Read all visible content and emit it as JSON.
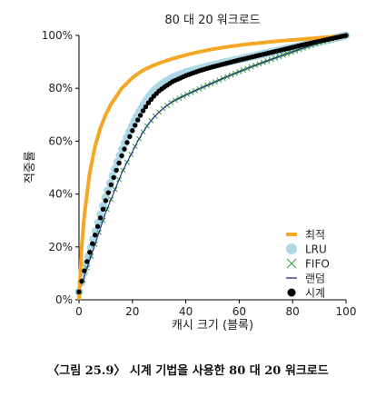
{
  "caption": "〈그림 25.9〉 시계 기법을 사용한 80 대 20 워크로드",
  "chart_data": {
    "type": "line",
    "title": "80 대 20 워크로드",
    "xlabel": "캐시 크기 (블록)",
    "ylabel": "적중률",
    "xlim": [
      0,
      100
    ],
    "ylim": [
      0,
      100
    ],
    "xticks": [
      0,
      20,
      40,
      60,
      80,
      100
    ],
    "yticks": [
      0,
      20,
      40,
      60,
      80,
      100
    ],
    "xtick_labels": [
      "0",
      "20",
      "40",
      "60",
      "80",
      "100"
    ],
    "ytick_labels": [
      "0%",
      "20%",
      "40%",
      "60%",
      "80%",
      "100%"
    ],
    "grid": false,
    "legend_position": "bottom-right",
    "x": [
      0,
      1,
      2,
      4,
      6,
      8,
      10,
      12,
      14,
      16,
      18,
      20,
      22,
      24,
      26,
      28,
      30,
      32,
      35,
      40,
      45,
      50,
      55,
      60,
      65,
      70,
      75,
      80,
      85,
      90,
      95,
      100
    ],
    "series": [
      {
        "name": "최적",
        "style": "line",
        "color": "#f5a623",
        "values": [
          0,
          20,
          32,
          48,
          58,
          65,
          70,
          74,
          77,
          80,
          82,
          84,
          85.5,
          86.8,
          87.8,
          88.7,
          89.5,
          90.2,
          91.2,
          92.6,
          93.8,
          94.8,
          95.6,
          96.3,
          96.9,
          97.4,
          97.9,
          98.3,
          98.7,
          99.1,
          99.5,
          100
        ]
      },
      {
        "name": "LRU",
        "style": "dot",
        "color": "#aed8e6",
        "values": [
          3,
          7,
          11,
          18,
          25,
          32,
          39,
          45,
          51,
          56.5,
          61.5,
          66,
          70,
          73.5,
          76.5,
          79,
          80.8,
          82.2,
          84,
          86,
          87.4,
          88.7,
          89.9,
          91,
          92.1,
          93.2,
          94.3,
          95.4,
          96.5,
          97.6,
          98.8,
          100
        ]
      },
      {
        "name": "FIFO",
        "style": "cross",
        "color": "#3a9a3a",
        "values": [
          3,
          6,
          9,
          15,
          21,
          27,
          33,
          38,
          43,
          48,
          52,
          56,
          60,
          63.5,
          66.5,
          69,
          71,
          72.8,
          75,
          77.5,
          79.8,
          82,
          84.2,
          86.3,
          88.3,
          90.2,
          92,
          93.8,
          95.6,
          97.3,
          98.8,
          100
        ]
      },
      {
        "name": "랜덤",
        "style": "line",
        "color": "#1f2a8a",
        "values": [
          3,
          6,
          9,
          15,
          21,
          27,
          33,
          38,
          43,
          48,
          52,
          56,
          60,
          63.5,
          66.5,
          69,
          71,
          72.8,
          75,
          77.5,
          79.8,
          82,
          84.2,
          86.3,
          88.3,
          90.2,
          92,
          93.8,
          95.6,
          97.3,
          98.8,
          100
        ]
      },
      {
        "name": "시계",
        "style": "dot",
        "color": "#000000",
        "values": [
          3,
          7,
          11,
          18,
          24.5,
          31,
          37.5,
          43.5,
          49,
          54.5,
          59.5,
          64,
          68,
          71.5,
          74.5,
          77,
          79,
          80.5,
          82.5,
          84.8,
          86.6,
          88.1,
          89.4,
          90.7,
          91.9,
          93.1,
          94.3,
          95.5,
          96.7,
          97.8,
          98.9,
          100
        ]
      }
    ]
  }
}
